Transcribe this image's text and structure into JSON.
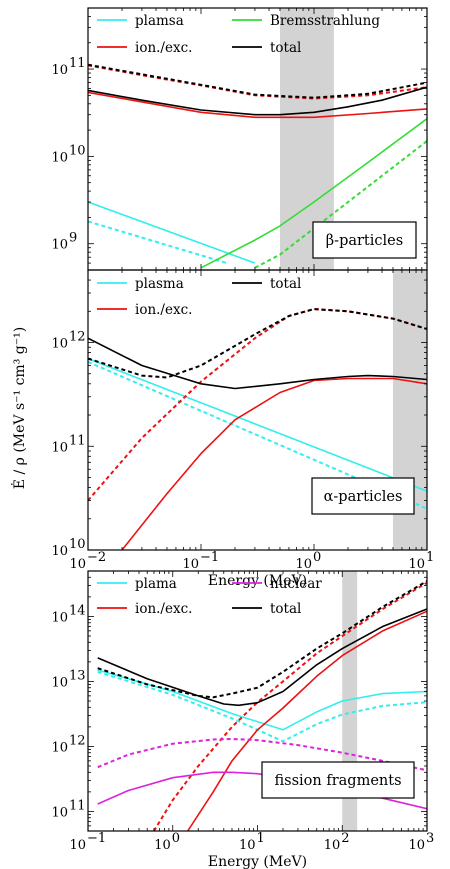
{
  "colors": {
    "plasma": "#33eeee",
    "ion": "#ee1111",
    "brems": "#33dd33",
    "nuclear": "#dd22dd",
    "total": "#000000",
    "band": "#d3d3d3"
  },
  "ylabel": "Ė / ρ (MeV s⁻¹ cm³ g⁻¹)",
  "chart_data": [
    {
      "type": "line",
      "xscale": "log",
      "yscale": "log",
      "xlim": [
        0.01,
        10
      ],
      "ylim": [
        500000000,
        500000000000
      ],
      "xlabel": "",
      "label": "β-particles",
      "band": [
        0.5,
        1.5
      ],
      "legend": [
        "plamsa",
        "ion./exc.",
        "Bremsstrahlung",
        "total"
      ],
      "yticks": [
        {
          "value": 1000000000,
          "label": "10",
          "exp": "9"
        },
        {
          "value": 10000000000,
          "label": "10",
          "exp": "10"
        },
        {
          "value": 100000000000,
          "label": "10",
          "exp": "11"
        }
      ],
      "series": [
        {
          "name": "plamsa",
          "color_key": "plasma",
          "style": "solid",
          "x": [
            0.01,
            0.3
          ],
          "y": [
            3000000000,
            600000000
          ]
        },
        {
          "name": "plamsa",
          "color_key": "plasma",
          "style": "dashed",
          "x": [
            0.01,
            0.17
          ],
          "y": [
            1800000000,
            600000000
          ]
        },
        {
          "name": "ion./exc.",
          "color_key": "ion",
          "style": "solid",
          "x": [
            0.01,
            0.03,
            0.1,
            0.3,
            1,
            3,
            10
          ],
          "y": [
            54000000000,
            42000000000,
            32000000000,
            28000000000,
            28000000000,
            31000000000,
            35000000000
          ]
        },
        {
          "name": "ion./exc.",
          "color_key": "ion",
          "style": "dashed",
          "x": [
            0.01,
            0.03,
            0.1,
            0.3,
            1,
            3,
            10
          ],
          "y": [
            110000000000,
            85000000000,
            65000000000,
            50000000000,
            46000000000,
            50000000000,
            62000000000
          ]
        },
        {
          "name": "Bremsstrahlung",
          "color_key": "brems",
          "style": "solid",
          "x": [
            0.1,
            0.3,
            0.5,
            1,
            3,
            10
          ],
          "y": [
            530000000,
            1100000000,
            1600000000,
            3000000000,
            8500000000,
            27000000000
          ]
        },
        {
          "name": "Bremsstrahlung",
          "color_key": "brems",
          "style": "dashed",
          "x": [
            0.3,
            0.5,
            1,
            3,
            10
          ],
          "y": [
            530000000,
            750000000,
            1500000000,
            4500000000,
            15000000000
          ]
        },
        {
          "name": "total",
          "color_key": "total",
          "style": "solid",
          "x": [
            0.01,
            0.03,
            0.1,
            0.3,
            0.5,
            1,
            2,
            4,
            10
          ],
          "y": [
            57000000000,
            44000000000,
            34000000000,
            30000000000,
            30000000000,
            32000000000,
            37000000000,
            44000000000,
            62000000000
          ]
        },
        {
          "name": "total",
          "color_key": "total",
          "style": "dashed",
          "x": [
            0.01,
            0.03,
            0.1,
            0.3,
            1,
            3,
            10
          ],
          "y": [
            112000000000,
            87000000000,
            66000000000,
            51000000000,
            47000000000,
            52000000000,
            70000000000
          ]
        }
      ]
    },
    {
      "type": "line",
      "xscale": "log",
      "yscale": "log",
      "xlim": [
        0.01,
        10
      ],
      "ylim": [
        10000000000,
        5000000000000
      ],
      "xlabel": "Energy (MeV)",
      "label": "α-particles",
      "band": [
        5,
        10
      ],
      "legend": [
        "plasma",
        "ion./exc.",
        "total"
      ],
      "xticks": [
        {
          "value": 0.01,
          "label": "10",
          "exp": "−2"
        },
        {
          "value": 0.1,
          "label": "10",
          "exp": "−1"
        },
        {
          "value": 1,
          "label": "10",
          "exp": "0"
        },
        {
          "value": 10,
          "label": "10",
          "exp": "1"
        }
      ],
      "yticks": [
        {
          "value": 10000000000,
          "label": "10",
          "exp": "10"
        },
        {
          "value": 100000000000,
          "label": "10",
          "exp": "11"
        },
        {
          "value": 1000000000000,
          "label": "10",
          "exp": "12"
        }
      ],
      "series": [
        {
          "name": "plasma",
          "color_key": "plasma",
          "style": "solid",
          "x": [
            0.01,
            10
          ],
          "y": [
            700000000000,
            37000000000
          ]
        },
        {
          "name": "plasma",
          "color_key": "plasma",
          "style": "dashed",
          "x": [
            0.01,
            10
          ],
          "y": [
            650000000000,
            25000000000
          ]
        },
        {
          "name": "ion./exc.",
          "color_key": "ion",
          "style": "solid",
          "x": [
            0.02,
            0.05,
            0.1,
            0.2,
            0.5,
            1,
            2,
            5,
            10
          ],
          "y": [
            10000000000,
            35000000000,
            85000000000,
            180000000000,
            330000000000,
            430000000000,
            450000000000,
            450000000000,
            400000000000
          ]
        },
        {
          "name": "ion./exc.",
          "color_key": "ion",
          "style": "dashed",
          "x": [
            0.01,
            0.03,
            0.1,
            0.3,
            0.6,
            1,
            2,
            5,
            10
          ],
          "y": [
            30000000000,
            120000000000,
            420000000000,
            1100000000000,
            1800000000000,
            2100000000000,
            2000000000000,
            1700000000000,
            1350000000000
          ]
        },
        {
          "name": "total",
          "color_key": "total",
          "style": "solid",
          "x": [
            0.01,
            0.03,
            0.1,
            0.2,
            0.5,
            1,
            2,
            3,
            5,
            10
          ],
          "y": [
            1100000000000,
            600000000000,
            400000000000,
            360000000000,
            400000000000,
            440000000000,
            470000000000,
            480000000000,
            470000000000,
            440000000000
          ]
        },
        {
          "name": "total",
          "color_key": "total",
          "style": "dashed",
          "x": [
            0.01,
            0.03,
            0.05,
            0.1,
            0.3,
            0.6,
            1,
            2,
            5,
            10
          ],
          "y": [
            700000000000,
            480000000000,
            460000000000,
            600000000000,
            1200000000000,
            1800000000000,
            2100000000000,
            2000000000000,
            1700000000000,
            1350000000000
          ]
        }
      ]
    },
    {
      "type": "line",
      "xscale": "log",
      "yscale": "log",
      "xlim": [
        0.1,
        1000
      ],
      "ylim": [
        50000000000,
        500000000000000
      ],
      "xlabel": "Energy (MeV)",
      "label": "fission fragments",
      "band": [
        100,
        150
      ],
      "legend": [
        "plama",
        "ion./exc.",
        "nuclear",
        "total"
      ],
      "xticks": [
        {
          "value": 0.1,
          "label": "10",
          "exp": "−1"
        },
        {
          "value": 1,
          "label": "10",
          "exp": "0"
        },
        {
          "value": 10,
          "label": "10",
          "exp": "1"
        },
        {
          "value": 100,
          "label": "10",
          "exp": "2"
        },
        {
          "value": 1000,
          "label": "10",
          "exp": "3"
        }
      ],
      "yticks": [
        {
          "value": 100000000000,
          "label": "10",
          "exp": "11"
        },
        {
          "value": 1000000000000,
          "label": "10",
          "exp": "12"
        },
        {
          "value": 10000000000000,
          "label": "10",
          "exp": "13"
        },
        {
          "value": 100000000000000,
          "label": "10",
          "exp": "14"
        }
      ],
      "series": [
        {
          "name": "plama",
          "color_key": "plasma",
          "style": "solid",
          "x": [
            0.13,
            1,
            5,
            20,
            50,
            100,
            300,
            1000
          ],
          "y": [
            15000000000000,
            7000000000000,
            3200000000000,
            1800000000000,
            3400000000000,
            5000000000000,
            6500000000000,
            7000000000000
          ]
        },
        {
          "name": "plama",
          "color_key": "plasma",
          "style": "dashed",
          "x": [
            0.13,
            1,
            5,
            20,
            50,
            100,
            300,
            1000
          ],
          "y": [
            14000000000000,
            6200000000000,
            2700000000000,
            1200000000000,
            2200000000000,
            3100000000000,
            4200000000000,
            4800000000000
          ]
        },
        {
          "name": "ion./exc.",
          "color_key": "ion",
          "style": "solid",
          "x": [
            1.5,
            3,
            5,
            10,
            20,
            50,
            100,
            300,
            1000
          ],
          "y": [
            50000000000,
            200000000000,
            600000000000,
            1800000000000,
            3900000000000,
            12000000000000,
            25000000000000,
            60000000000000,
            120000000000000
          ]
        },
        {
          "name": "ion./exc.",
          "color_key": "ion",
          "style": "dashed",
          "x": [
            0.6,
            1,
            2,
            5,
            10,
            20,
            50,
            100,
            300,
            1000
          ],
          "y": [
            50000000000,
            150000000000,
            500000000000,
            2000000000000,
            4800000000000,
            10000000000000,
            27000000000000,
            50000000000000,
            130000000000000,
            330000000000000
          ]
        },
        {
          "name": "nuclear",
          "color_key": "nuclear",
          "style": "solid",
          "x": [
            0.13,
            0.3,
            1,
            3,
            5,
            10,
            30,
            100,
            300,
            1000
          ],
          "y": [
            130000000000,
            210000000000,
            330000000000,
            400000000000,
            400000000000,
            380000000000,
            310000000000,
            230000000000,
            160000000000,
            110000000000
          ]
        },
        {
          "name": "nuclear",
          "color_key": "nuclear",
          "style": "dashed",
          "x": [
            0.13,
            0.3,
            1,
            3,
            5,
            10,
            30,
            100,
            300,
            1000
          ],
          "y": [
            480000000000,
            750000000000,
            1100000000000,
            1280000000000,
            1300000000000,
            1250000000000,
            1050000000000,
            800000000000,
            600000000000,
            430000000000
          ]
        },
        {
          "name": "total",
          "color_key": "total",
          "style": "solid",
          "x": [
            0.13,
            0.5,
            2,
            4,
            6,
            10,
            20,
            50,
            100,
            300,
            1000
          ],
          "y": [
            23000000000000,
            11000000000000,
            6000000000000,
            4500000000000,
            4300000000000,
            4700000000000,
            7000000000000,
            18000000000000,
            32000000000000,
            70000000000000,
            130000000000000
          ]
        },
        {
          "name": "total",
          "color_key": "total",
          "style": "dashed",
          "x": [
            0.13,
            0.5,
            2,
            3,
            5,
            10,
            20,
            50,
            100,
            300,
            1000
          ],
          "y": [
            16000000000000,
            9000000000000,
            6000000000000,
            5700000000000,
            6500000000000,
            8000000000000,
            14000000000000,
            32000000000000,
            55000000000000,
            140000000000000,
            350000000000000
          ]
        }
      ]
    }
  ]
}
